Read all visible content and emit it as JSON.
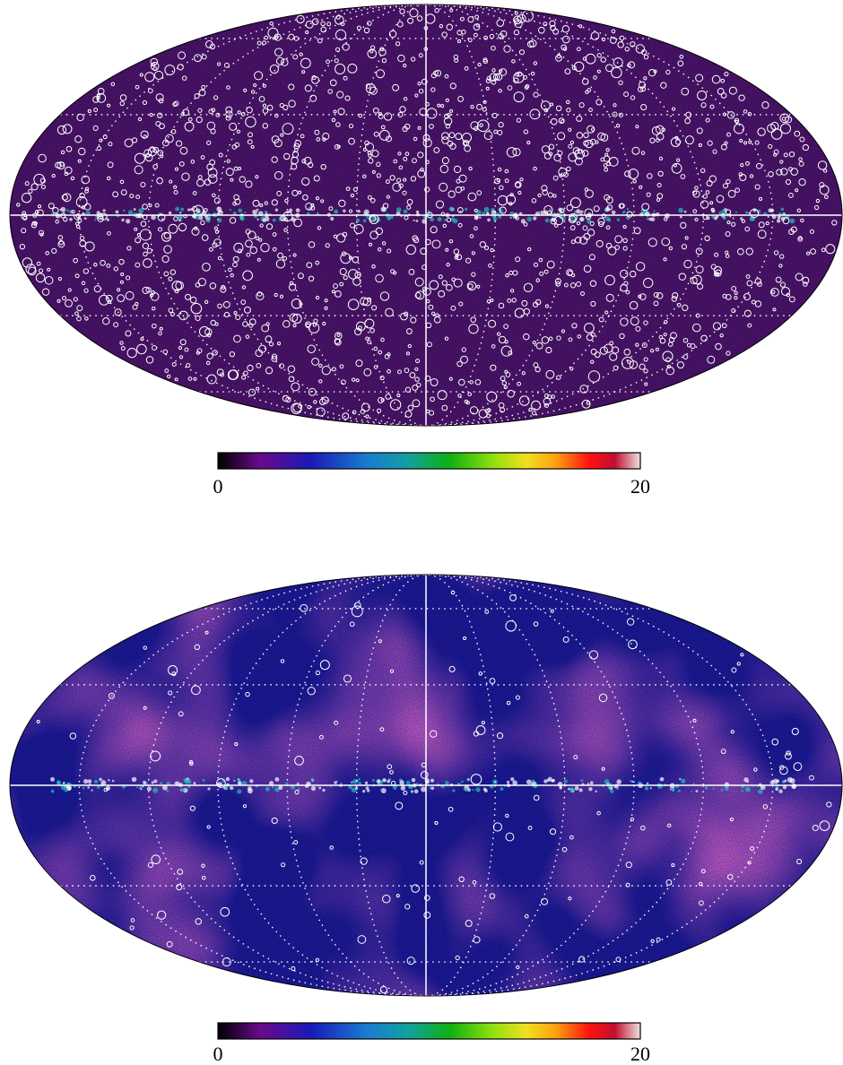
{
  "maps": [
    {
      "colormap": "rainbow",
      "background": "#4e1470",
      "colorbar": {
        "range": [
          0,
          20
        ],
        "ticks": [
          0,
          20
        ]
      }
    },
    {
      "colormap": "rainbow",
      "background": "#1c1a9e",
      "colorbar": {
        "range": [
          0,
          20
        ],
        "ticks": [
          0,
          20
        ]
      }
    }
  ]
}
